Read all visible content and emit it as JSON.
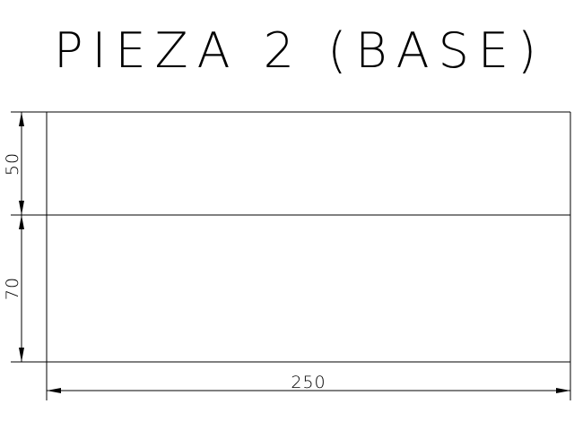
{
  "title": "PIEZA 2 (BASE)",
  "dimensions": {
    "upper_height": "50",
    "lower_height": "70",
    "width": "250"
  },
  "colors": {
    "background": "#ffffff",
    "lines": "#000000"
  }
}
